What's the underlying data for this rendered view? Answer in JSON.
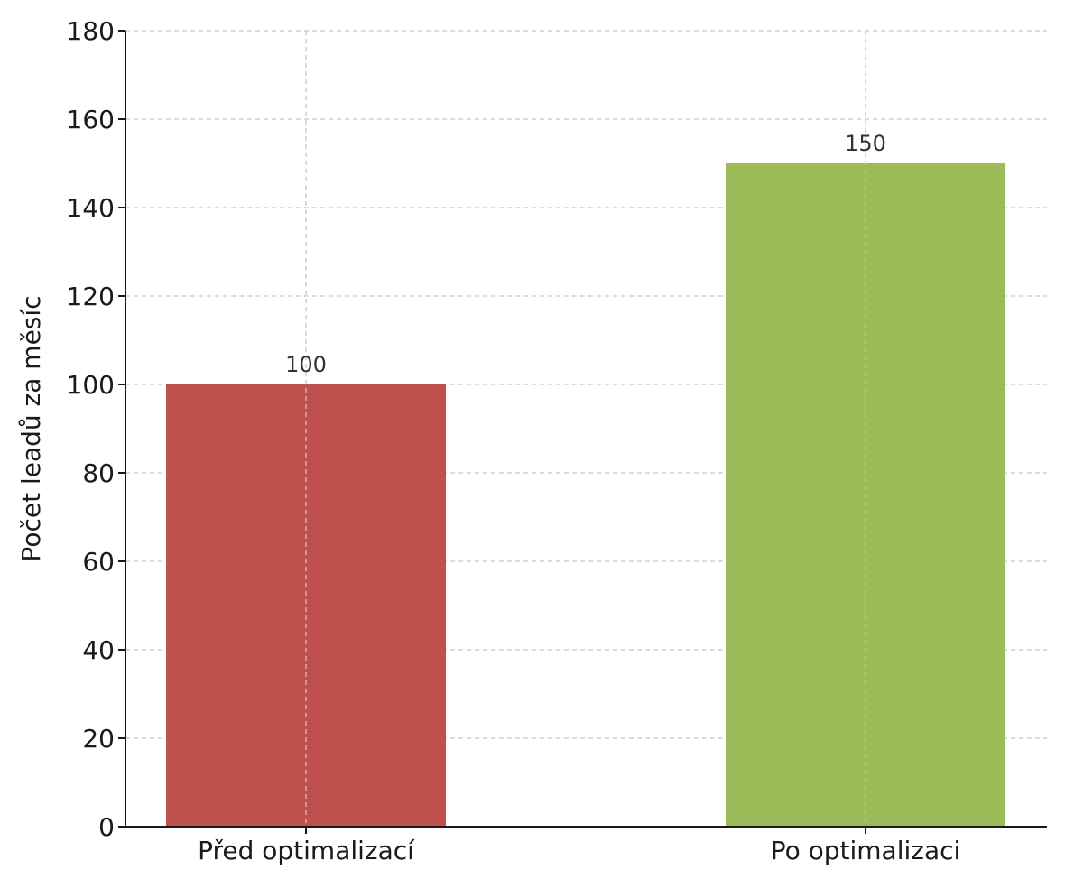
{
  "chart_data": {
    "type": "bar",
    "title": "",
    "xlabel": "",
    "ylabel": "Počet leadů za měsíc",
    "categories": [
      "Před optimalizací",
      "Po optimalizaci"
    ],
    "values": [
      100,
      150
    ],
    "data_labels": [
      "100",
      "150"
    ],
    "colors": [
      "#c0504d",
      "#9bbb59"
    ],
    "ylim": [
      0,
      180
    ],
    "yticks": [
      0,
      20,
      40,
      60,
      80,
      100,
      120,
      140,
      160,
      180
    ],
    "grid": true,
    "grid_style": "dashed",
    "legend": "none"
  }
}
